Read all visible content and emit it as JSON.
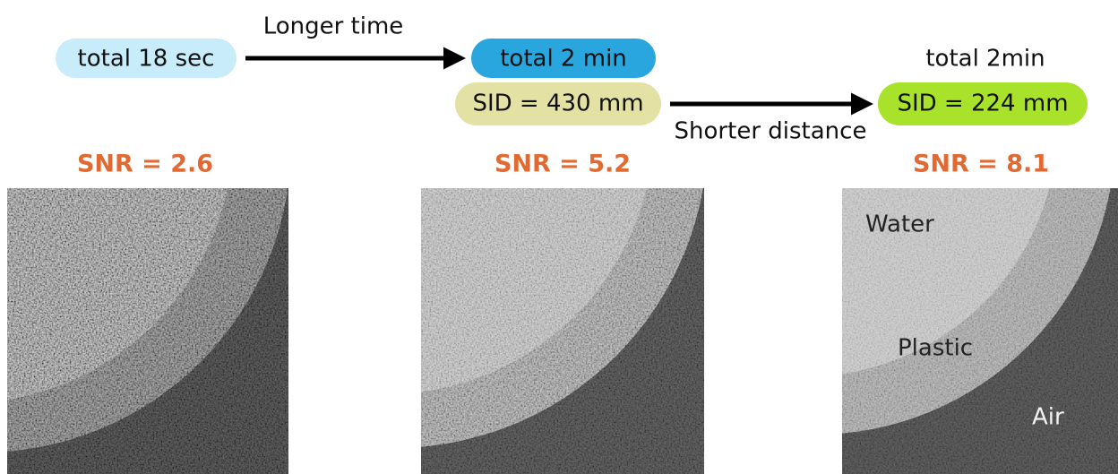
{
  "arrows": {
    "time": "Longer time",
    "distance": "Shorter distance"
  },
  "steps": [
    {
      "time": "total 18 sec",
      "snr": "SNR = 2.6"
    },
    {
      "time": "total 2 min",
      "sid": "SID = 430 mm",
      "snr": "SNR = 5.2"
    },
    {
      "time": "total 2min",
      "sid": "SID = 224 mm",
      "snr": "SNR = 8.1"
    }
  ],
  "materials": {
    "water": "Water",
    "plastic": "Plastic",
    "air": "Air"
  }
}
